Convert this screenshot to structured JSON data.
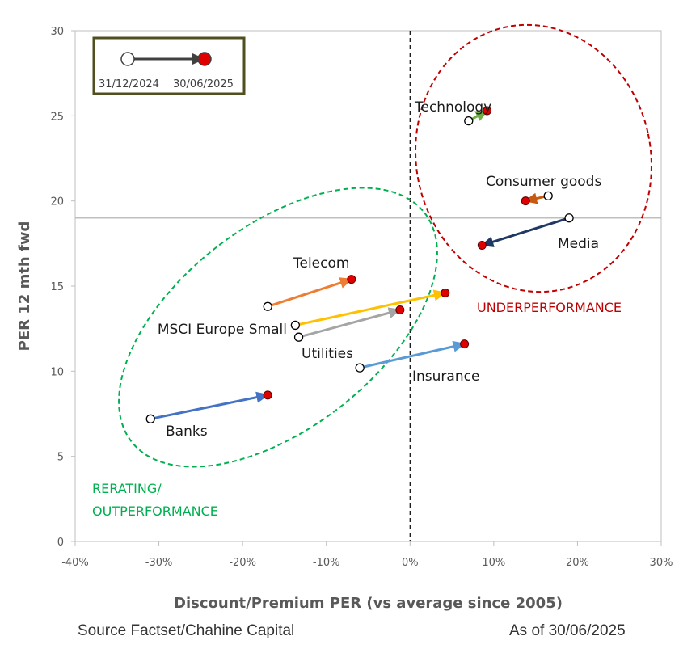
{
  "chart_data": {
    "type": "scatter",
    "xlabel": "Discount/Premium PER (vs average since 2005)",
    "ylabel": "PER 12 mth fwd",
    "xlim": [
      -0.4,
      0.3
    ],
    "ylim": [
      0,
      30
    ],
    "x_ticks": [
      -0.4,
      -0.3,
      -0.2,
      -0.1,
      0,
      0.1,
      0.2,
      0.3
    ],
    "x_tick_labels": [
      "-40%",
      "-30%",
      "-20%",
      "-10%",
      "0%",
      "10%",
      "20%",
      "30%"
    ],
    "y_ticks": [
      0,
      5,
      10,
      15,
      20,
      25,
      30
    ],
    "y_tick_labels": [
      "0",
      "5",
      "10",
      "15",
      "20",
      "25",
      "30"
    ],
    "reference_lines": {
      "vertical_x": 0,
      "horizontal_y": 19
    },
    "legend": {
      "placement": "top-left",
      "start_label": "31/12/2024",
      "end_label": "30/06/2025"
    },
    "series": [
      {
        "name": "Technology",
        "from": [
          0.07,
          24.7
        ],
        "to": [
          0.092,
          25.3
        ],
        "color": "#70ad47"
      },
      {
        "name": "Consumer goods",
        "from": [
          0.165,
          20.3
        ],
        "to": [
          0.138,
          20.0
        ],
        "color": "#c55a11"
      },
      {
        "name": "Media",
        "from": [
          0.19,
          19.0
        ],
        "to": [
          0.086,
          17.4
        ],
        "color": "#203864"
      },
      {
        "name": "Telecom",
        "from": [
          -0.17,
          13.8
        ],
        "to": [
          -0.07,
          15.4
        ],
        "color": "#ed7d31"
      },
      {
        "name": "MSCI Europe Small",
        "from": [
          -0.137,
          12.7
        ],
        "to": [
          0.042,
          14.6
        ],
        "color": "#ffc000"
      },
      {
        "name": "Utilities",
        "from": [
          -0.133,
          12.0
        ],
        "to": [
          -0.012,
          13.6
        ],
        "color": "#a5a5a5"
      },
      {
        "name": "Insurance",
        "from": [
          -0.06,
          10.2
        ],
        "to": [
          0.065,
          11.6
        ],
        "color": "#5b9bd5"
      },
      {
        "name": "Banks",
        "from": [
          -0.31,
          7.2
        ],
        "to": [
          -0.17,
          8.6
        ],
        "color": "#4472c4"
      }
    ],
    "zones": [
      {
        "name": "UNDERPERFORMANCE",
        "color": "#c00000"
      },
      {
        "name": "RERATING/ OUTPERFORMANCE",
        "line1": "RERATING/",
        "line2": "OUTPERFORMANCE",
        "color": "#00b050"
      }
    ]
  },
  "footer": {
    "source": "Source Factset/Chahine  Capital",
    "as_of": "As of 30/06/2025"
  }
}
